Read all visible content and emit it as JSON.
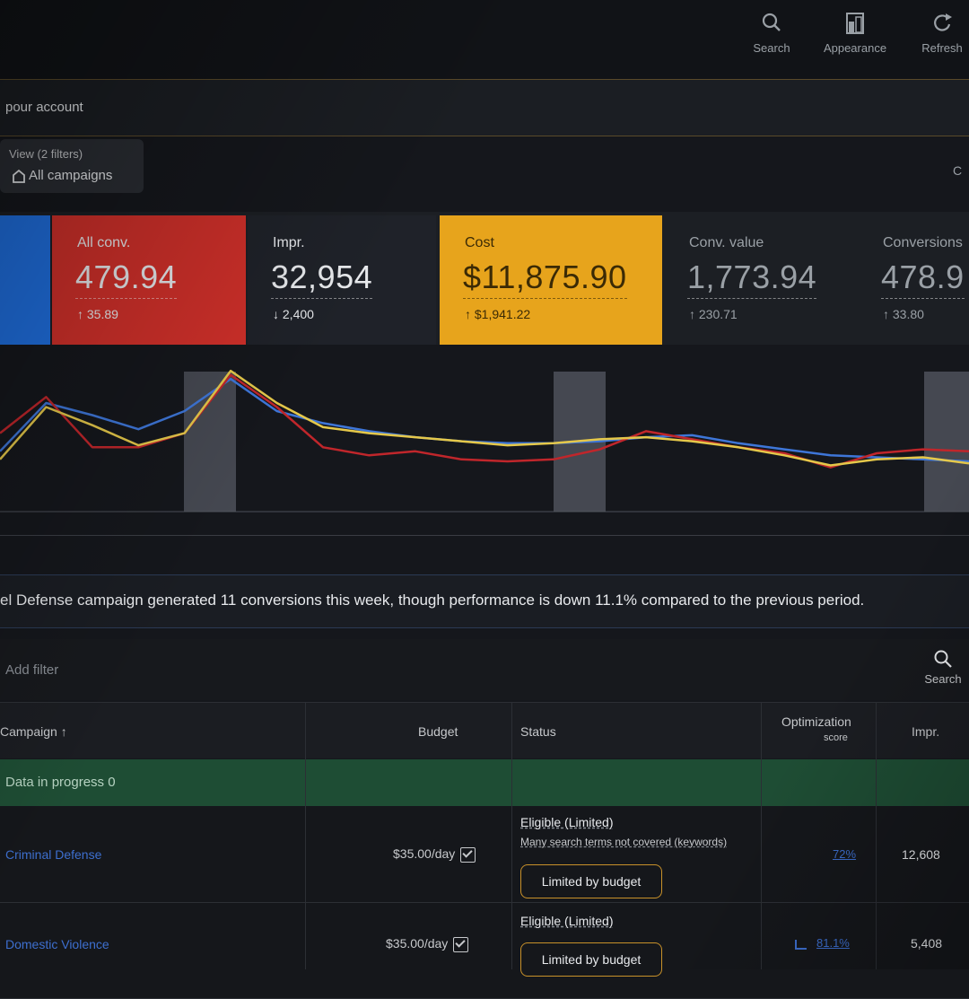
{
  "toolbar": {
    "search_label": "Search",
    "appearance_label": "Appearance",
    "refresh_label": "Refresh"
  },
  "account": {
    "label": "pour account"
  },
  "view_selector": {
    "line1": "View (2 filters)",
    "line2": "All campaigns"
  },
  "right_hint": "C",
  "scorecards": [
    {
      "name": "All conv.",
      "value": "479.94",
      "delta": "↑ 35.89",
      "bg": "#d0302a"
    },
    {
      "name": "Impr.",
      "value": "32,954",
      "delta": "↓ 2,400",
      "bg": "#1f2229"
    },
    {
      "name": "Cost",
      "value": "$11,875.90",
      "delta": "↑ $1,941.22",
      "bg": "#e7a41c"
    },
    {
      "name": "Conv. value",
      "value": "1,773.94",
      "delta": "↑ 230.71",
      "bg": "#1c1f24"
    },
    {
      "name": "Conversions",
      "value": "478.9",
      "delta": "↑ 33.80",
      "bg": "#1c1f24"
    }
  ],
  "chart_data": {
    "type": "line",
    "series": [
      {
        "color": "#3e76d8",
        "values": [
          60,
          108,
          96,
          82,
          100,
          132,
          100,
          88,
          80,
          74,
          70,
          68,
          68,
          70,
          74,
          76,
          68,
          62,
          56,
          54,
          52,
          50
        ]
      },
      {
        "color": "#c0262b",
        "values": [
          78,
          114,
          64,
          64,
          78,
          136,
          104,
          64,
          56,
          60,
          52,
          50,
          52,
          62,
          80,
          72,
          64,
          58,
          44,
          58,
          62,
          60
        ]
      },
      {
        "color": "#e5c84a",
        "values": [
          52,
          104,
          86,
          66,
          78,
          140,
          108,
          84,
          78,
          74,
          70,
          66,
          68,
          72,
          74,
          70,
          64,
          56,
          46,
          52,
          54,
          48
        ]
      }
    ]
  },
  "insight": {
    "text": "el Defense campaign generated 11 conversions this week, though performance is down 11.1% compared to the previous period."
  },
  "filter": {
    "placeholder": "Add filter",
    "search_label": "Search"
  },
  "table": {
    "headers": {
      "campaign": "Campaign ↑",
      "budget": "Budget",
      "status": "Status",
      "optimization_line1": "Optimization",
      "optimization_line2": "score",
      "impr": "Impr."
    },
    "progress_text": "Data in progress 0",
    "rows": [
      {
        "name": "Criminal Defense",
        "budget": "$35.00/day",
        "status_line1": "Eligible (Limited)",
        "status_line2": "Many search terms not covered (keywords)",
        "pill": "Limited by budget",
        "opt_score": "72%",
        "impr": "12,608"
      },
      {
        "name": "Domestic Violence",
        "budget": "$35.00/day",
        "status_line1": "Eligible (Limited)",
        "status_line2": "",
        "pill": "Limited by budget",
        "opt_score": "81.1%",
        "impr": "5,408"
      }
    ]
  }
}
